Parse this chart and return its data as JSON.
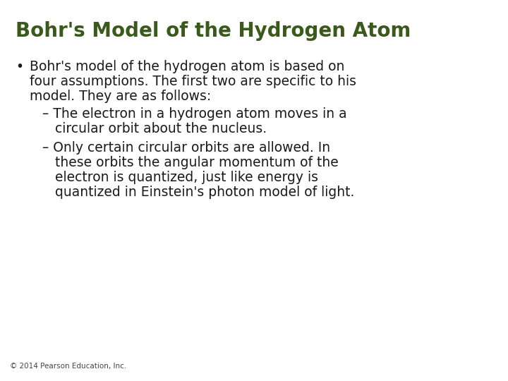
{
  "title": "Bohr's Model of the Hydrogen Atom",
  "title_color": "#3a5a1c",
  "title_fontsize": 20,
  "title_bold": true,
  "background_color": "#ffffff",
  "body_fontsize": 13.5,
  "body_color": "#1a1a1a",
  "footer": "© 2014 Pearson Education, Inc.",
  "footer_fontsize": 7.5,
  "footer_color": "#444444",
  "bullet_line1": "Bohr's model of the hydrogen atom is based on",
  "bullet_line2": "four assumptions. The first two are specific to his",
  "bullet_line3": "model. They are as follows:",
  "sub1_line1": "– The electron in a hydrogen atom moves in a",
  "sub1_line2": "   circular orbit about the nucleus.",
  "sub2_line1": "– Only certain circular orbits are allowed. In",
  "sub2_line2": "   these orbits the angular momentum of the",
  "sub2_line3": "   electron is quantized, just like energy is",
  "sub2_line4": "   quantized in Einstein's photon model of light."
}
